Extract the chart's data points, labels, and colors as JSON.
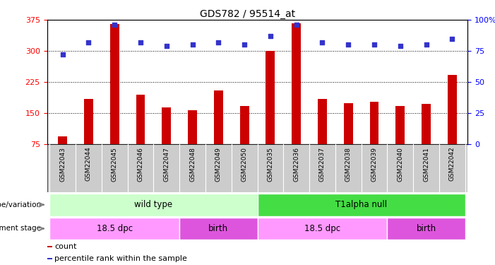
{
  "title": "GDS782 / 95514_at",
  "samples": [
    "GSM22043",
    "GSM22044",
    "GSM22045",
    "GSM22046",
    "GSM22047",
    "GSM22048",
    "GSM22049",
    "GSM22050",
    "GSM22035",
    "GSM22036",
    "GSM22037",
    "GSM22038",
    "GSM22039",
    "GSM22040",
    "GSM22041",
    "GSM22042"
  ],
  "counts": [
    95,
    185,
    365,
    195,
    165,
    158,
    205,
    168,
    300,
    367,
    185,
    175,
    178,
    168,
    173,
    243
  ],
  "percentiles": [
    72,
    82,
    96,
    82,
    79,
    80,
    82,
    80,
    87,
    96,
    82,
    80,
    80,
    79,
    80,
    85
  ],
  "ylim_left": [
    75,
    375
  ],
  "ylim_right": [
    0,
    100
  ],
  "yticks_left": [
    75,
    150,
    225,
    300,
    375
  ],
  "yticks_right": [
    0,
    25,
    50,
    75,
    100
  ],
  "bar_color": "#cc0000",
  "dot_color": "#3333cc",
  "plot_bg": "#ffffff",
  "label_bg": "#cccccc",
  "genotype_groups": [
    {
      "label": "wild type",
      "start": 0,
      "end": 8,
      "color": "#ccffcc"
    },
    {
      "label": "T1alpha null",
      "start": 8,
      "end": 16,
      "color": "#44dd44"
    }
  ],
  "dev_stage_groups": [
    {
      "label": "18.5 dpc",
      "start": 0,
      "end": 5,
      "color": "#ff99ff"
    },
    {
      "label": "birth",
      "start": 5,
      "end": 8,
      "color": "#dd55dd"
    },
    {
      "label": "18.5 dpc",
      "start": 8,
      "end": 13,
      "color": "#ff99ff"
    },
    {
      "label": "birth",
      "start": 13,
      "end": 16,
      "color": "#dd55dd"
    }
  ],
  "legend_items": [
    {
      "label": "count",
      "color": "#cc0000"
    },
    {
      "label": "percentile rank within the sample",
      "color": "#3333cc"
    }
  ],
  "grid_yticks": [
    150,
    225,
    300
  ]
}
